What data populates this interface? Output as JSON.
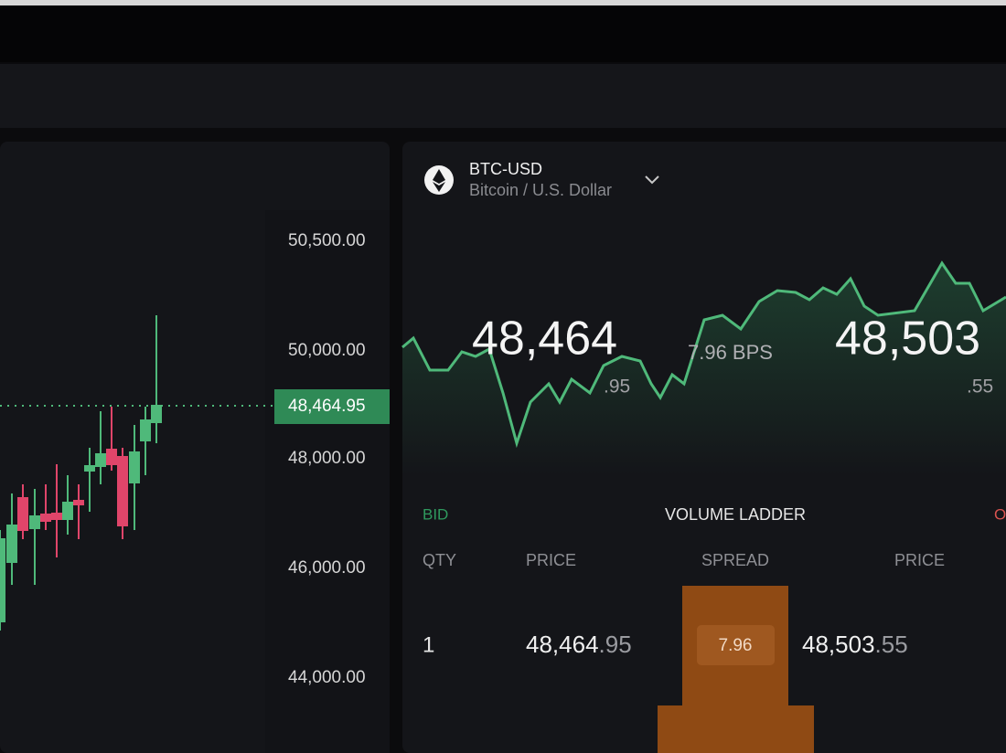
{
  "price_axis": {
    "labels": [
      "50,500.00",
      "50,000.00",
      "48,000.00",
      "46,000.00",
      "44,000.00"
    ],
    "current_price": "48,464.95"
  },
  "instrument": {
    "symbol": "BTC-USD",
    "name": "Bitcoin / U.S. Dollar"
  },
  "quote": {
    "bid_main": "48,464",
    "bid_fraction": ".95",
    "spread": "7.96 BPS",
    "ask_main": "48,503",
    "ask_fraction": ".55"
  },
  "ladder": {
    "bid_label": "BID",
    "title": "VOLUME LADDER",
    "ask_label": "O",
    "columns": [
      "QTY",
      "PRICE",
      "SPREAD",
      "PRICE"
    ],
    "rows": [
      {
        "qty": "1",
        "bid_main": "48,464",
        "bid_fraction": ".95",
        "spread": "7.96",
        "ask_main": "48,503",
        "ask_fraction": ".55"
      }
    ]
  }
}
